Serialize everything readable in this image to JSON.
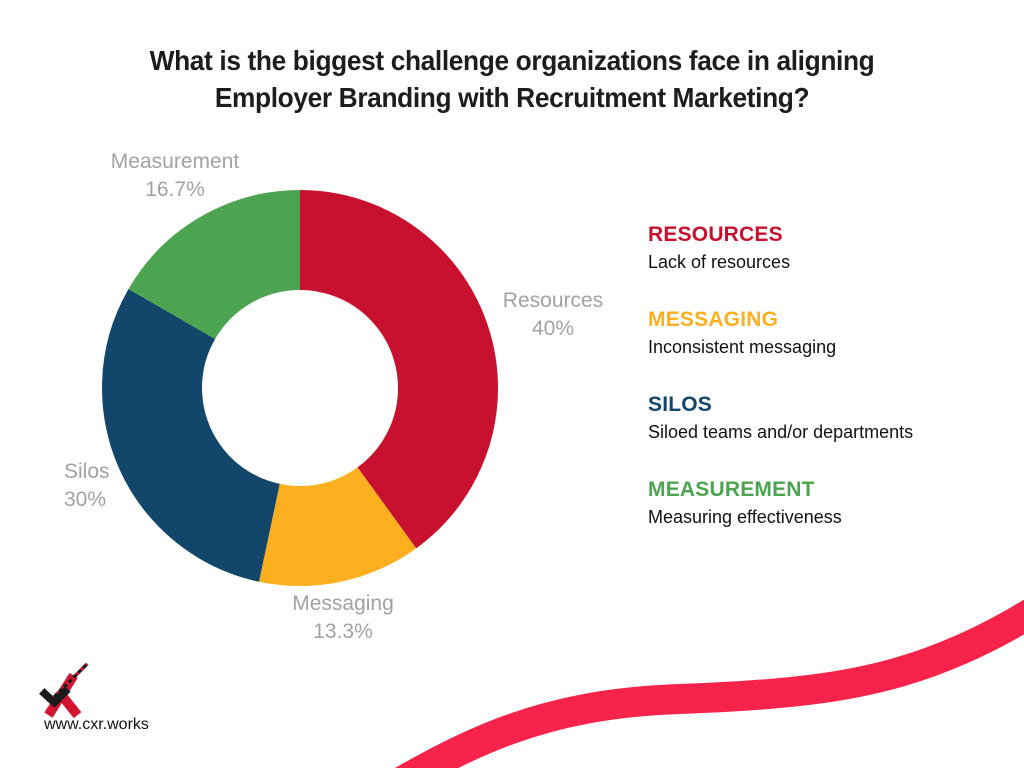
{
  "title": {
    "line1": "What is the biggest challenge organizations face in aligning",
    "line2": "Employer Branding with Recruitment Marketing?"
  },
  "chart_data": {
    "type": "pie",
    "subtype": "donut",
    "hole_ratio": 0.5,
    "start_angle_deg": 0,
    "direction": "clockwise",
    "categories": [
      "Resources",
      "Messaging",
      "Silos",
      "Measurement"
    ],
    "values": [
      40,
      13.3,
      30,
      16.7
    ],
    "slices": [
      {
        "label": "Resources",
        "pct_label": "40%",
        "value": 40,
        "color": "#C8112E"
      },
      {
        "label": "Messaging",
        "pct_label": "13.3%",
        "value": 13.3,
        "color": "#FDB01F"
      },
      {
        "label": "Silos",
        "pct_label": "30%",
        "value": 30,
        "color": "#12466B"
      },
      {
        "label": "Measurement",
        "pct_label": "16.7%",
        "value": 16.7,
        "color": "#4CA450"
      }
    ],
    "label_color": "#A2A2A2",
    "title": "",
    "legend_position": "right",
    "grid": false
  },
  "legend": {
    "items": [
      {
        "heading": "RESOURCES",
        "description": "Lack of resources",
        "color": "#C8112E"
      },
      {
        "heading": "MESSAGING",
        "description": "Inconsistent messaging",
        "color": "#FDB01F"
      },
      {
        "heading": "SILOS",
        "description": "Siloed teams and/or departments",
        "color": "#12466B"
      },
      {
        "heading": "MEASUREMENT",
        "description": "Measuring effectiveness",
        "color": "#4CA450"
      }
    ]
  },
  "footer": {
    "website": "www.cxr.works"
  },
  "colors": {
    "ribbon": "#F8234A",
    "title": "#1D1D1F",
    "background": "#FFFFFF",
    "logo_black": "#1A1A1A",
    "logo_red": "#D31532"
  }
}
